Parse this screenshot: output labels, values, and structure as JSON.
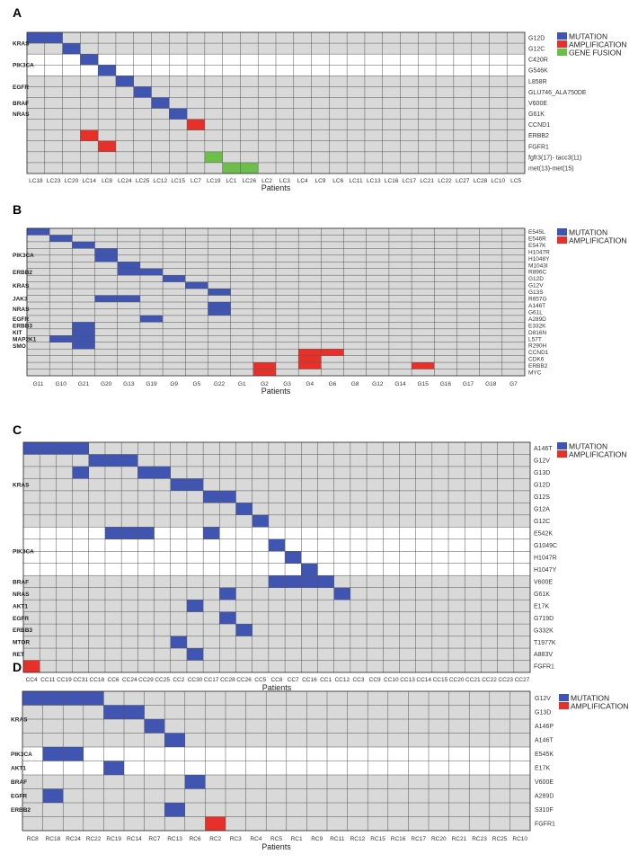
{
  "colors": {
    "mutation": "#4054B2",
    "amplification": "#E8302A",
    "gene_fusion": "#6CBF4A",
    "band": "#D9D9D9",
    "grid": "#555555"
  },
  "chart_data": [
    {
      "type": "heatmap",
      "panel_label": "A",
      "xlabel": "Patients",
      "legend": [
        {
          "label": "MUTATION",
          "color": "#4054B2"
        },
        {
          "label": "AMPLIFICATION",
          "color": "#E8302A"
        },
        {
          "label": "GENE FUSION",
          "color": "#6CBF4A"
        }
      ],
      "patients": [
        "LC18",
        "LC23",
        "LC20",
        "LC14",
        "LC8",
        "LC24",
        "LC25",
        "LC12",
        "LC15",
        "LC7",
        "LC19",
        "LC1",
        "LC26",
        "LC2",
        "LC3",
        "LC4",
        "LC9",
        "LC6",
        "LC11",
        "LC13",
        "LC16",
        "LC17",
        "LC21",
        "LC22",
        "LC27",
        "LC28",
        "LC10",
        "LC5"
      ],
      "rows": [
        "G12D",
        "G12C",
        "C420R",
        "G546K",
        "L858R",
        "GLU746_ALA750DE",
        "V600E",
        "G61K",
        "CCND1",
        "ERBB2",
        "FGFR1",
        "fgfr3(17)- tacc3(11)",
        "met(13)-met(15)"
      ],
      "genes": [
        {
          "name": "KRAS",
          "row": 0.5
        },
        {
          "name": "PIK3CA",
          "row": 2.5
        },
        {
          "name": "EGFR",
          "row": 4.5
        },
        {
          "name": "BRAF",
          "row": 6
        },
        {
          "name": "NRAS",
          "row": 7
        }
      ],
      "shaded_rows": [
        0,
        1,
        4,
        5,
        6,
        7,
        8,
        9,
        10,
        11,
        12
      ],
      "cells": [
        {
          "row": 0,
          "col": 0,
          "type": "MUTATION"
        },
        {
          "row": 0,
          "col": 1,
          "type": "MUTATION"
        },
        {
          "row": 1,
          "col": 2,
          "type": "MUTATION"
        },
        {
          "row": 2,
          "col": 3,
          "type": "MUTATION"
        },
        {
          "row": 3,
          "col": 4,
          "type": "MUTATION"
        },
        {
          "row": 4,
          "col": 5,
          "type": "MUTATION"
        },
        {
          "row": 5,
          "col": 6,
          "type": "MUTATION"
        },
        {
          "row": 6,
          "col": 7,
          "type": "MUTATION"
        },
        {
          "row": 7,
          "col": 8,
          "type": "MUTATION"
        },
        {
          "row": 8,
          "col": 9,
          "type": "AMPLIFICATION"
        },
        {
          "row": 9,
          "col": 3,
          "type": "AMPLIFICATION"
        },
        {
          "row": 10,
          "col": 4,
          "type": "AMPLIFICATION"
        },
        {
          "row": 11,
          "col": 10,
          "type": "GENE FUSION"
        },
        {
          "row": 12,
          "col": 11,
          "type": "GENE FUSION"
        },
        {
          "row": 12,
          "col": 12,
          "type": "GENE FUSION"
        }
      ]
    },
    {
      "type": "heatmap",
      "panel_label": "B",
      "xlabel": "Patients",
      "legend": [
        {
          "label": "MUTATION",
          "color": "#4054B2"
        },
        {
          "label": "AMPLIFICATION",
          "color": "#E8302A"
        }
      ],
      "patients": [
        "G11",
        "G10",
        "G21",
        "G20",
        "G13",
        "G19",
        "G9",
        "G5",
        "G22",
        "G1",
        "G2",
        "G3",
        "G4",
        "G6",
        "G8",
        "G12",
        "G14",
        "G15",
        "G16",
        "G17",
        "G18",
        "G7"
      ],
      "rows": [
        "E545L",
        "E546R",
        "E547K",
        "H1047R",
        "H1048Y",
        "M1043I",
        "R896C",
        "G12D",
        "G12V",
        "G13S",
        "R657G",
        "A146T",
        "G61L",
        "A289D",
        "E332K",
        "D816N",
        "L57T",
        "R290H",
        "CCND1",
        "CDK6",
        "ERBB2",
        "MYC"
      ],
      "genes": [
        {
          "name": "PIK3CA",
          "row": 3.5
        },
        {
          "name": "ERBB2",
          "row": 6
        },
        {
          "name": "KRAS",
          "row": 8
        },
        {
          "name": "JAK3",
          "row": 10
        },
        {
          "name": "NRAS",
          "row": 11.5
        },
        {
          "name": "EGFR",
          "row": 13
        },
        {
          "name": "ERBB3",
          "row": 14
        },
        {
          "name": "KIT",
          "row": 15
        },
        {
          "name": "MAP2K1",
          "row": 16
        },
        {
          "name": "SMO",
          "row": 17
        }
      ],
      "shaded_rows": [
        0,
        1,
        2,
        3,
        4,
        5,
        6,
        7,
        8,
        9,
        10,
        11,
        12,
        13,
        14,
        15,
        16,
        17,
        18,
        19,
        20,
        21
      ],
      "cells": [
        {
          "row": 0,
          "col": 0,
          "type": "MUTATION"
        },
        {
          "row": 1,
          "col": 1,
          "type": "MUTATION"
        },
        {
          "row": 2,
          "col": 2,
          "type": "MUTATION"
        },
        {
          "row": 3,
          "col": 3,
          "type": "MUTATION"
        },
        {
          "row": 4,
          "col": 3,
          "type": "MUTATION"
        },
        {
          "row": 5,
          "col": 4,
          "type": "MUTATION"
        },
        {
          "row": 6,
          "col": 4,
          "type": "MUTATION"
        },
        {
          "row": 6,
          "col": 5,
          "type": "MUTATION"
        },
        {
          "row": 7,
          "col": 6,
          "type": "MUTATION"
        },
        {
          "row": 8,
          "col": 7,
          "type": "MUTATION"
        },
        {
          "row": 9,
          "col": 8,
          "type": "MUTATION"
        },
        {
          "row": 10,
          "col": 3,
          "type": "MUTATION"
        },
        {
          "row": 10,
          "col": 4,
          "type": "MUTATION"
        },
        {
          "row": 11,
          "col": 8,
          "type": "MUTATION"
        },
        {
          "row": 12,
          "col": 8,
          "type": "MUTATION"
        },
        {
          "row": 13,
          "col": 5,
          "type": "MUTATION"
        },
        {
          "row": 14,
          "col": 2,
          "type": "MUTATION"
        },
        {
          "row": 15,
          "col": 2,
          "type": "MUTATION"
        },
        {
          "row": 16,
          "col": 1,
          "type": "MUTATION"
        },
        {
          "row": 16,
          "col": 2,
          "type": "MUTATION"
        },
        {
          "row": 17,
          "col": 2,
          "type": "MUTATION"
        },
        {
          "row": 18,
          "col": 12,
          "type": "AMPLIFICATION"
        },
        {
          "row": 18,
          "col": 13,
          "type": "AMPLIFICATION"
        },
        {
          "row": 19,
          "col": 12,
          "type": "AMPLIFICATION"
        },
        {
          "row": 20,
          "col": 10,
          "type": "AMPLIFICATION"
        },
        {
          "row": 20,
          "col": 12,
          "type": "AMPLIFICATION"
        },
        {
          "row": 20,
          "col": 17,
          "type": "AMPLIFICATION"
        },
        {
          "row": 21,
          "col": 10,
          "type": "AMPLIFICATION"
        }
      ]
    },
    {
      "type": "heatmap",
      "panel_label": "C",
      "xlabel": "Patients",
      "legend": [
        {
          "label": "MUTATION",
          "color": "#4054B2"
        },
        {
          "label": "AMPLIFICATION",
          "color": "#E8302A"
        }
      ],
      "patients": [
        "CC4",
        "CC11",
        "CC19",
        "CC31",
        "CC18",
        "CC6",
        "CC24",
        "CC29",
        "CC25",
        "CC2",
        "CC30",
        "CC17",
        "CC28",
        "CC26",
        "CC5",
        "CC8",
        "CC7",
        "CC16",
        "CC1",
        "CC12",
        "CC3",
        "CC9",
        "CC10",
        "CC13",
        "CC14",
        "CC15",
        "CC20",
        "CC21",
        "CC22",
        "CC23",
        "CC27"
      ],
      "rows": [
        "A146T",
        "G12V",
        "G13D",
        "G12D",
        "G12S",
        "G12A",
        "G12C",
        "E542K",
        "G1049C",
        "H1047R",
        "H1047Y",
        "V600E",
        "G61K",
        "E17K",
        "G719D",
        "G332K",
        "T1977K",
        "A883V",
        "FGFR1"
      ],
      "genes": [
        {
          "name": "KRAS",
          "row": 3
        },
        {
          "name": "PIK3CA",
          "row": 8.5
        },
        {
          "name": "BRAF",
          "row": 11
        },
        {
          "name": "NRAS",
          "row": 12
        },
        {
          "name": "AKT1",
          "row": 13
        },
        {
          "name": "EGFR",
          "row": 14
        },
        {
          "name": "ERBB3",
          "row": 15
        },
        {
          "name": "MTOR",
          "row": 16
        },
        {
          "name": "RET",
          "row": 17
        }
      ],
      "shaded_rows": [
        0,
        1,
        2,
        3,
        4,
        5,
        6,
        11,
        12,
        13,
        14,
        15,
        16,
        17,
        18
      ],
      "cells": [
        {
          "row": 0,
          "col": 0,
          "type": "MUTATION"
        },
        {
          "row": 0,
          "col": 1,
          "type": "MUTATION"
        },
        {
          "row": 0,
          "col": 2,
          "type": "MUTATION"
        },
        {
          "row": 0,
          "col": 3,
          "type": "MUTATION"
        },
        {
          "row": 1,
          "col": 4,
          "type": "MUTATION"
        },
        {
          "row": 1,
          "col": 5,
          "type": "MUTATION"
        },
        {
          "row": 1,
          "col": 6,
          "type": "MUTATION"
        },
        {
          "row": 2,
          "col": 3,
          "type": "MUTATION"
        },
        {
          "row": 2,
          "col": 7,
          "type": "MUTATION"
        },
        {
          "row": 2,
          "col": 8,
          "type": "MUTATION"
        },
        {
          "row": 3,
          "col": 9,
          "type": "MUTATION"
        },
        {
          "row": 3,
          "col": 10,
          "type": "MUTATION"
        },
        {
          "row": 4,
          "col": 11,
          "type": "MUTATION"
        },
        {
          "row": 4,
          "col": 12,
          "type": "MUTATION"
        },
        {
          "row": 5,
          "col": 13,
          "type": "MUTATION"
        },
        {
          "row": 6,
          "col": 14,
          "type": "MUTATION"
        },
        {
          "row": 7,
          "col": 5,
          "type": "MUTATION"
        },
        {
          "row": 7,
          "col": 6,
          "type": "MUTATION"
        },
        {
          "row": 7,
          "col": 7,
          "type": "MUTATION"
        },
        {
          "row": 7,
          "col": 11,
          "type": "MUTATION"
        },
        {
          "row": 8,
          "col": 15,
          "type": "MUTATION"
        },
        {
          "row": 9,
          "col": 16,
          "type": "MUTATION"
        },
        {
          "row": 10,
          "col": 17,
          "type": "MUTATION"
        },
        {
          "row": 11,
          "col": 15,
          "type": "MUTATION"
        },
        {
          "row": 11,
          "col": 16,
          "type": "MUTATION"
        },
        {
          "row": 11,
          "col": 17,
          "type": "MUTATION"
        },
        {
          "row": 11,
          "col": 18,
          "type": "MUTATION"
        },
        {
          "row": 12,
          "col": 12,
          "type": "MUTATION"
        },
        {
          "row": 12,
          "col": 19,
          "type": "MUTATION"
        },
        {
          "row": 13,
          "col": 10,
          "type": "MUTATION"
        },
        {
          "row": 14,
          "col": 12,
          "type": "MUTATION"
        },
        {
          "row": 15,
          "col": 13,
          "type": "MUTATION"
        },
        {
          "row": 16,
          "col": 9,
          "type": "MUTATION"
        },
        {
          "row": 17,
          "col": 10,
          "type": "MUTATION"
        },
        {
          "row": 18,
          "col": 0,
          "type": "AMPLIFICATION"
        }
      ]
    },
    {
      "type": "heatmap",
      "panel_label": "D",
      "xlabel": "Patients",
      "legend": [
        {
          "label": "MUTATION",
          "color": "#4054B2"
        },
        {
          "label": "AMPLIFICATION",
          "color": "#E8302A"
        }
      ],
      "patients": [
        "RC8",
        "RC18",
        "RC24",
        "RC22",
        "RC19",
        "RC14",
        "RC7",
        "RC13",
        "RC6",
        "RC2",
        "RC3",
        "RC4",
        "RC5",
        "RC1",
        "RC9",
        "RC11",
        "RC12",
        "RC15",
        "RC16",
        "RC17",
        "RC20",
        "RC21",
        "RC23",
        "RC25",
        "RC10"
      ],
      "rows": [
        "G12V",
        "G13D",
        "A146P",
        "A146T",
        "E545K",
        "E17K",
        "V600E",
        "A289D",
        "S310F",
        "FGFR1"
      ],
      "genes": [
        {
          "name": "KRAS",
          "row": 1.5
        },
        {
          "name": "PIK3CA",
          "row": 4
        },
        {
          "name": "AKT1",
          "row": 5
        },
        {
          "name": "BRAF",
          "row": 6
        },
        {
          "name": "EGFR",
          "row": 7
        },
        {
          "name": "ERBB2",
          "row": 8
        }
      ],
      "shaded_rows": [
        0,
        1,
        2,
        3,
        6,
        7,
        8,
        9
      ],
      "cells": [
        {
          "row": 0,
          "col": 0,
          "type": "MUTATION"
        },
        {
          "row": 0,
          "col": 1,
          "type": "MUTATION"
        },
        {
          "row": 0,
          "col": 2,
          "type": "MUTATION"
        },
        {
          "row": 0,
          "col": 3,
          "type": "MUTATION"
        },
        {
          "row": 1,
          "col": 4,
          "type": "MUTATION"
        },
        {
          "row": 1,
          "col": 5,
          "type": "MUTATION"
        },
        {
          "row": 2,
          "col": 6,
          "type": "MUTATION"
        },
        {
          "row": 3,
          "col": 7,
          "type": "MUTATION"
        },
        {
          "row": 4,
          "col": 1,
          "type": "MUTATION"
        },
        {
          "row": 4,
          "col": 2,
          "type": "MUTATION"
        },
        {
          "row": 5,
          "col": 4,
          "type": "MUTATION"
        },
        {
          "row": 6,
          "col": 8,
          "type": "MUTATION"
        },
        {
          "row": 7,
          "col": 1,
          "type": "MUTATION"
        },
        {
          "row": 8,
          "col": 7,
          "type": "MUTATION"
        },
        {
          "row": 9,
          "col": 9,
          "type": "AMPLIFICATION"
        }
      ]
    }
  ]
}
